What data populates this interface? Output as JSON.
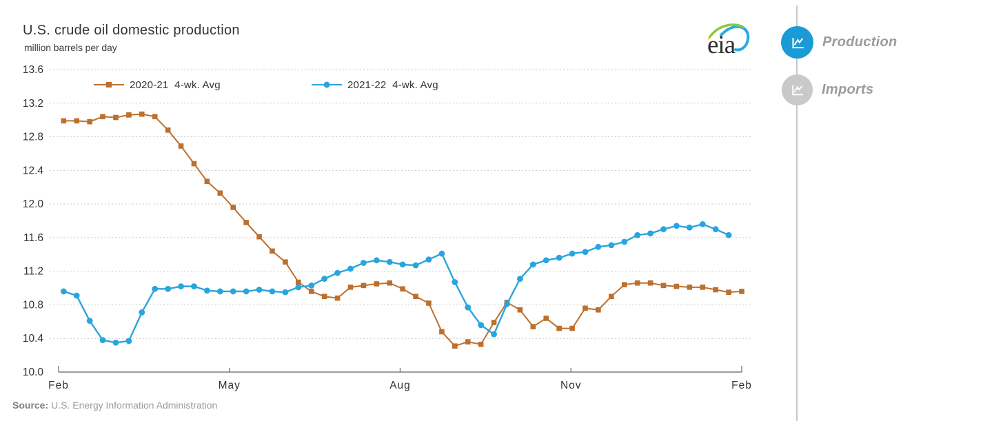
{
  "header": {
    "title": "U.S. crude oil domestic production",
    "subtitle": "million barrels per day"
  },
  "logo": {
    "text": "eia"
  },
  "legend": [
    {
      "label": "2020-21  4-wk. Avg",
      "color": "#bd6f2d",
      "marker": "square"
    },
    {
      "label": "2021-22  4-wk. Avg",
      "color": "#29a5dd",
      "marker": "circle"
    }
  ],
  "source": {
    "prefix": "Source:",
    "text": "U.S. Energy Information Administration"
  },
  "sidebar": {
    "items": [
      {
        "label": "Production",
        "icon": "line-chart-icon",
        "active": true
      },
      {
        "label": "Imports",
        "icon": "line-chart-icon",
        "active": false
      }
    ]
  },
  "colors": {
    "series_2020_21": "#bd6f2d",
    "series_2021_22": "#29a5dd",
    "active_button": "#1b9bd5",
    "inactive_button": "#c9c9c9",
    "sidebar_label": "#9b9b9b",
    "gridline": "#c9c9c9",
    "axis": "#7d7d7d",
    "source_text": "#9a9a9a"
  },
  "chart_data": {
    "type": "line",
    "title": "U.S. crude oil domestic production",
    "ylabel": "million barrels per day",
    "ylim": [
      10.0,
      13.6
    ],
    "yticks": [
      13.6,
      13.2,
      12.8,
      12.4,
      12.0,
      11.6,
      11.2,
      10.8,
      10.4,
      10.0
    ],
    "xticks": [
      "Feb",
      "May",
      "Aug",
      "Nov",
      "Feb"
    ],
    "x_frequency": "weekly",
    "grid": "horizontal-dotted",
    "legend_position": "top-inside",
    "series": [
      {
        "name": "2020-21 4-wk. Avg",
        "color": "#bd6f2d",
        "marker": "square",
        "values": [
          12.99,
          12.99,
          12.98,
          13.04,
          13.03,
          13.06,
          13.07,
          13.04,
          12.88,
          12.69,
          12.48,
          12.27,
          12.13,
          11.96,
          11.78,
          11.61,
          11.44,
          11.31,
          11.07,
          10.96,
          10.9,
          10.88,
          11.01,
          11.03,
          11.05,
          11.06,
          10.99,
          10.9,
          10.82,
          10.48,
          10.31,
          10.36,
          10.33,
          10.59,
          10.83,
          10.74,
          10.54,
          10.64,
          10.52,
          10.52,
          10.76,
          10.74,
          10.9,
          11.04,
          11.06,
          11.06,
          11.03,
          11.02,
          11.01,
          11.01,
          10.98,
          10.95,
          10.96
        ]
      },
      {
        "name": "2021-22 4-wk. Avg",
        "color": "#29a5dd",
        "marker": "circle",
        "values": [
          10.96,
          10.91,
          10.61,
          10.38,
          10.35,
          10.37,
          10.71,
          10.99,
          10.99,
          11.02,
          11.02,
          10.97,
          10.96,
          10.96,
          10.96,
          10.98,
          10.96,
          10.95,
          11.01,
          11.03,
          11.11,
          11.18,
          11.23,
          11.3,
          11.33,
          11.31,
          11.28,
          11.27,
          11.34,
          11.41,
          11.07,
          10.77,
          10.56,
          10.45,
          10.81,
          11.11,
          11.28,
          11.33,
          11.36,
          11.41,
          11.43,
          11.49,
          11.51,
          11.55,
          11.63,
          11.65,
          11.7,
          11.74,
          11.72,
          11.76,
          11.7,
          11.63
        ]
      }
    ]
  }
}
